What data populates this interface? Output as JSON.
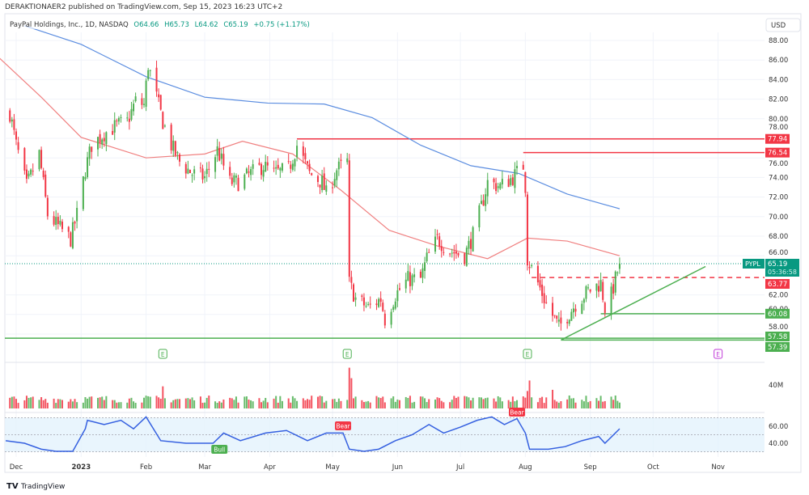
{
  "publisher_line": "DERAKTIONAER2 published on TradingView.com, Sep 15, 2023 16:23 UTC+2",
  "legend": {
    "symbol_desc": "PayPal Holdings, Inc., 1D, NASDAQ",
    "open": "O64.66",
    "high": "H65.73",
    "low": "L64.62",
    "close": "C65.19",
    "change": "+0.75 (+1.17%)"
  },
  "currency_button": "USD",
  "footer_logo": "TradingView",
  "colors": {
    "up": "#4caf50",
    "down": "#f23645",
    "ma_fast": "#f08080",
    "ma_slow": "#5b8de0",
    "rsi": "#3560e0",
    "accent": "#089981",
    "earnings": "#4caf50",
    "earnings_future": "#c03ad8"
  },
  "price_labels": {
    "symbol": "PYPL",
    "last": "65.19",
    "countdown": "05:36:58",
    "levels": [
      {
        "value": "77.94",
        "color": "#f23645",
        "style": "solid",
        "from": "2023-04-14"
      },
      {
        "value": "76.54",
        "color": "#f23645",
        "style": "solid",
        "from": "2023-07-31"
      },
      {
        "value": "63.77",
        "color": "#f23645",
        "style": "dashed",
        "from": "2023-08-04"
      },
      {
        "value": "60.08",
        "color": "#4caf50",
        "style": "solid",
        "from": "2023-09-06"
      },
      {
        "value": "57.58",
        "color": "#4caf50",
        "style": "solid",
        "from": "2022-11-20"
      },
      {
        "value": "57.39",
        "color": "#4caf50",
        "style": "solid",
        "from": "2023-08-18"
      }
    ]
  },
  "chart_data": {
    "type": "candlestick",
    "price_axis": {
      "ticks": [
        "58.00",
        "60.00",
        "62.00",
        "66.00",
        "68.00",
        "70.00",
        "72.00",
        "74.00",
        "76.00",
        "78.00",
        "80.00",
        "82.00",
        "84.00",
        "86.00",
        "88.00"
      ],
      "range": [
        56,
        89
      ]
    },
    "time_axis": {
      "ticks": [
        {
          "label": "Dec",
          "date": "2022-12-01"
        },
        {
          "label": "2023",
          "date": "2023-01-01"
        },
        {
          "label": "Feb",
          "date": "2023-02-01"
        },
        {
          "label": "Mar",
          "date": "2023-03-01"
        },
        {
          "label": "Apr",
          "date": "2023-04-01"
        },
        {
          "label": "May",
          "date": "2023-05-01"
        },
        {
          "label": "Jun",
          "date": "2023-06-01"
        },
        {
          "label": "Jul",
          "date": "2023-07-01"
        },
        {
          "label": "Aug",
          "date": "2023-08-01"
        },
        {
          "label": "Sep",
          "date": "2023-09-01"
        },
        {
          "label": "Oct",
          "date": "2023-10-01"
        },
        {
          "label": "Nov",
          "date": "2023-11-01"
        }
      ]
    },
    "close_approx": [
      [
        "2022-11-28",
        80.6
      ],
      [
        "2022-12-01",
        77.3
      ],
      [
        "2022-12-06",
        73.1
      ],
      [
        "2022-12-12",
        76.4
      ],
      [
        "2022-12-16",
        70.2
      ],
      [
        "2022-12-21",
        69.0
      ],
      [
        "2022-12-27",
        67.7
      ],
      [
        "2022-12-30",
        70.2
      ],
      [
        "2023-01-03",
        74.8
      ],
      [
        "2023-01-06",
        77.3
      ],
      [
        "2023-01-12",
        78.5
      ],
      [
        "2023-01-18",
        79.3
      ],
      [
        "2023-01-23",
        79.7
      ],
      [
        "2023-01-27",
        81.8
      ],
      [
        "2023-01-31",
        81.4
      ],
      [
        "2023-02-02",
        85.5
      ],
      [
        "2023-02-06",
        82.2
      ],
      [
        "2023-02-09",
        79.7
      ],
      [
        "2023-02-13",
        77.3
      ],
      [
        "2023-02-17",
        75.6
      ],
      [
        "2023-02-23",
        74.4
      ],
      [
        "2023-03-01",
        74.0
      ],
      [
        "2023-03-07",
        76.8
      ],
      [
        "2023-03-13",
        73.5
      ],
      [
        "2023-03-17",
        73.5
      ],
      [
        "2023-03-23",
        74.4
      ],
      [
        "2023-03-29",
        75.2
      ],
      [
        "2023-04-03",
        74.4
      ],
      [
        "2023-04-10",
        74.8
      ],
      [
        "2023-04-14",
        77.3
      ],
      [
        "2023-04-20",
        74.4
      ],
      [
        "2023-04-26",
        73.5
      ],
      [
        "2023-04-28",
        72.3
      ],
      [
        "2023-05-03",
        74.8
      ],
      [
        "2023-05-08",
        75.6
      ],
      [
        "2023-05-09",
        63.2
      ],
      [
        "2023-05-12",
        61.6
      ],
      [
        "2023-05-18",
        60.7
      ],
      [
        "2023-05-24",
        61.6
      ],
      [
        "2023-05-26",
        59.5
      ],
      [
        "2023-05-31",
        62.0
      ],
      [
        "2023-06-06",
        63.6
      ],
      [
        "2023-06-12",
        63.6
      ],
      [
        "2023-06-15",
        65.7
      ],
      [
        "2023-06-20",
        67.7
      ],
      [
        "2023-06-26",
        66.5
      ],
      [
        "2023-07-03",
        66.0
      ],
      [
        "2023-07-07",
        68.1
      ],
      [
        "2023-07-11",
        71.0
      ],
      [
        "2023-07-14",
        73.5
      ],
      [
        "2023-07-20",
        73.1
      ],
      [
        "2023-07-26",
        74.0
      ],
      [
        "2023-07-31",
        75.2
      ],
      [
        "2023-08-01",
        73.1
      ],
      [
        "2023-08-02",
        65.7
      ],
      [
        "2023-08-07",
        63.2
      ],
      [
        "2023-08-11",
        61.1
      ],
      [
        "2023-08-17",
        58.7
      ],
      [
        "2023-08-21",
        59.9
      ],
      [
        "2023-08-25",
        61.1
      ],
      [
        "2023-08-31",
        62.4
      ],
      [
        "2023-09-06",
        63.2
      ],
      [
        "2023-09-08",
        60.7
      ],
      [
        "2023-09-11",
        62.0
      ],
      [
        "2023-09-15",
        65.19
      ]
    ],
    "ma_fast": [
      [
        "2022-11-20",
        86.8
      ],
      [
        "2022-12-13",
        82.2
      ],
      [
        "2023-01-01",
        78.1
      ],
      [
        "2023-02-01",
        76.0
      ],
      [
        "2023-03-01",
        76.4
      ],
      [
        "2023-03-19",
        77.7
      ],
      [
        "2023-04-12",
        76.4
      ],
      [
        "2023-05-05",
        72.7
      ],
      [
        "2023-05-28",
        68.6
      ],
      [
        "2023-06-20",
        67.0
      ],
      [
        "2023-07-14",
        65.7
      ],
      [
        "2023-08-02",
        67.8
      ],
      [
        "2023-08-21",
        67.5
      ],
      [
        "2023-09-15",
        66.0
      ]
    ],
    "ma_slow": [
      [
        "2022-12-05",
        89.5
      ],
      [
        "2023-01-01",
        87.6
      ],
      [
        "2023-02-01",
        84.3
      ],
      [
        "2023-03-01",
        82.2
      ],
      [
        "2023-03-31",
        81.6
      ],
      [
        "2023-04-27",
        81.5
      ],
      [
        "2023-05-20",
        80.1
      ],
      [
        "2023-06-12",
        77.3
      ],
      [
        "2023-07-06",
        75.2
      ],
      [
        "2023-07-29",
        74.4
      ],
      [
        "2023-08-21",
        72.3
      ],
      [
        "2023-09-15",
        70.8
      ]
    ],
    "trendline": [
      [
        "2023-08-18",
        57.39
      ],
      [
        "2023-10-26",
        64.9
      ]
    ],
    "earnings": [
      {
        "date": "2023-02-09",
        "label": "E",
        "future": false
      },
      {
        "date": "2023-05-08",
        "label": "E",
        "future": false
      },
      {
        "date": "2023-08-02",
        "label": "E",
        "future": false
      },
      {
        "date": "2023-11-01",
        "label": "E",
        "future": true
      }
    ],
    "volume": {
      "axis_label": "40M",
      "typical_millions": 16,
      "spikes": [
        [
          "2023-02-09",
          38
        ],
        [
          "2023-05-09",
          70
        ],
        [
          "2023-05-10",
          52
        ],
        [
          "2023-08-02",
          30
        ],
        [
          "2023-08-03",
          48
        ],
        [
          "2023-08-14",
          32
        ]
      ]
    },
    "rsi": {
      "ticks": [
        "60.00",
        "40.00"
      ],
      "band": [
        30,
        70
      ],
      "values": [
        [
          "2022-11-26",
          43
        ],
        [
          "2022-12-05",
          40
        ],
        [
          "2022-12-13",
          33
        ],
        [
          "2022-12-20",
          30.5
        ],
        [
          "2022-12-28",
          30.5
        ],
        [
          "2023-01-03",
          57
        ],
        [
          "2023-01-04",
          67
        ],
        [
          "2023-01-12",
          62
        ],
        [
          "2023-01-20",
          67
        ],
        [
          "2023-01-26",
          57
        ],
        [
          "2023-02-01",
          71
        ],
        [
          "2023-02-08",
          43
        ],
        [
          "2023-02-20",
          40
        ],
        [
          "2023-03-05",
          40
        ],
        [
          "2023-03-10",
          52
        ],
        [
          "2023-03-18",
          43
        ],
        [
          "2023-03-30",
          52
        ],
        [
          "2023-04-09",
          55
        ],
        [
          "2023-04-19",
          43
        ],
        [
          "2023-04-28",
          52
        ],
        [
          "2023-05-06",
          52
        ],
        [
          "2023-05-09",
          33
        ],
        [
          "2023-05-16",
          30.5
        ],
        [
          "2023-05-23",
          33
        ],
        [
          "2023-05-31",
          43
        ],
        [
          "2023-06-08",
          50
        ],
        [
          "2023-06-16",
          62
        ],
        [
          "2023-06-23",
          52
        ],
        [
          "2023-07-01",
          59
        ],
        [
          "2023-07-09",
          67
        ],
        [
          "2023-07-16",
          71
        ],
        [
          "2023-07-22",
          62
        ],
        [
          "2023-07-28",
          69
        ],
        [
          "2023-08-01",
          52
        ],
        [
          "2023-08-03",
          33
        ],
        [
          "2023-08-12",
          33
        ],
        [
          "2023-08-20",
          36
        ],
        [
          "2023-08-28",
          43
        ],
        [
          "2023-09-05",
          48
        ],
        [
          "2023-09-08",
          40
        ],
        [
          "2023-09-15",
          57
        ]
      ],
      "divergences": [
        {
          "label": "Bull",
          "date": "2023-03-08",
          "type": "bull"
        },
        {
          "label": "Bear",
          "date": "2023-05-06",
          "type": "bear"
        },
        {
          "label": "Bear",
          "date": "2023-07-28",
          "type": "bear"
        }
      ]
    }
  }
}
